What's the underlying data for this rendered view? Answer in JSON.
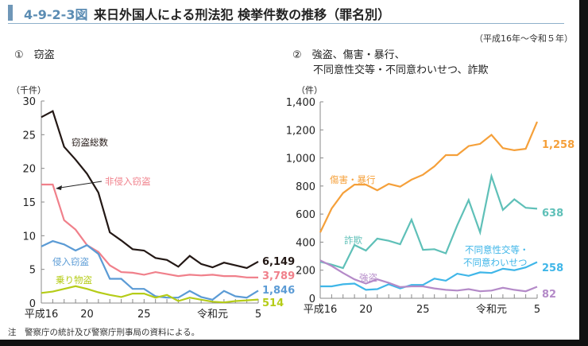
{
  "header": {
    "figure_id": "4-9-2-3図",
    "title": "来日外国人による刑法犯 検挙件数の推移（罪名別）",
    "period": "（平成16年～令和５年）"
  },
  "note": "注　警察庁の統計及び警察庁刑事局の資料による。",
  "chart_data": [
    {
      "type": "line",
      "title": "①　窃盗",
      "ylabel": "（千件）",
      "xlabel": "",
      "ylim": [
        0,
        30
      ],
      "yticks": [
        "0",
        "5",
        "10",
        "15",
        "20",
        "25",
        "30"
      ],
      "x": [
        16,
        17,
        18,
        19,
        20,
        21,
        22,
        23,
        24,
        25,
        26,
        27,
        28,
        29,
        30,
        31,
        2,
        3,
        4,
        5
      ],
      "xtick_labels": [
        "平成16",
        "20",
        "25",
        "令和元",
        "5"
      ],
      "series": [
        {
          "name": "窃盗総数",
          "color": "#231815",
          "values": [
            27.6,
            28.5,
            23.2,
            21.3,
            19.2,
            16.4,
            10.5,
            9.3,
            8.0,
            7.8,
            6.7,
            6.4,
            5.4,
            7.0,
            5.8,
            5.3,
            6.0,
            5.6,
            5.2,
            6.149
          ],
          "end_label": "6,149"
        },
        {
          "name": "非侵入窃盗",
          "color": "#f0808b",
          "values": [
            17.6,
            17.6,
            12.3,
            10.9,
            8.6,
            7.6,
            5.6,
            4.6,
            4.5,
            4.2,
            4.6,
            4.3,
            4.0,
            4.2,
            4.1,
            4.2,
            4.0,
            4.0,
            3.8,
            3.789
          ],
          "end_label": "3,789"
        },
        {
          "name": "侵入窃盗",
          "color": "#5b9bd5",
          "values": [
            8.4,
            9.2,
            8.7,
            7.8,
            8.6,
            7.3,
            3.6,
            3.6,
            2.1,
            2.1,
            1.0,
            0.8,
            0.8,
            1.8,
            0.9,
            0.5,
            1.8,
            1.0,
            0.8,
            1.846
          ],
          "end_label": "1,846"
        },
        {
          "name": "乗り物盗",
          "color": "#b5cc18",
          "values": [
            1.5,
            1.7,
            2.1,
            2.5,
            2.1,
            1.6,
            1.2,
            0.9,
            1.4,
            1.4,
            0.8,
            1.2,
            0.3,
            0.8,
            0.5,
            0.2,
            0.1,
            0.3,
            0.4,
            0.514
          ],
          "end_label": "514"
        }
      ],
      "annotations": [
        "窃盗総数",
        "非侵入窃盗",
        "侵入窃盗",
        "乗り物盗"
      ]
    },
    {
      "type": "line",
      "title": "②　強盗、傷害・暴行、\n不同意性交等・不同意わいせつ、詐欺",
      "title_lines": [
        "②　強盗、傷害・暴行、",
        "不同意性交等・不同意わいせつ、詐欺"
      ],
      "ylabel": "（件）",
      "xlabel": "",
      "ylim": [
        0,
        1400
      ],
      "yticks": [
        "0",
        "200",
        "400",
        "600",
        "800",
        "1,000",
        "1,200",
        "1,400"
      ],
      "x": [
        16,
        17,
        18,
        19,
        20,
        21,
        22,
        23,
        24,
        25,
        26,
        27,
        28,
        29,
        30,
        31,
        2,
        3,
        4,
        5
      ],
      "xtick_labels": [
        "平成16",
        "20",
        "25",
        "令和元",
        "5"
      ],
      "series": [
        {
          "name": "傷害・暴行",
          "color": "#f5a03a",
          "values": [
            470,
            640,
            750,
            810,
            810,
            770,
            815,
            795,
            845,
            880,
            940,
            1020,
            1020,
            1085,
            1100,
            1165,
            1070,
            1055,
            1065,
            1258
          ],
          "end_label": "1,258"
        },
        {
          "name": "詐欺",
          "color": "#5fc0b8",
          "values": [
            260,
            240,
            215,
            380,
            340,
            425,
            410,
            385,
            560,
            345,
            350,
            320,
            520,
            700,
            470,
            870,
            630,
            705,
            645,
            638
          ],
          "end_label": "638"
        },
        {
          "name": "不同意性交等・不同意わいせつ",
          "color": "#3fb6e8",
          "values": [
            85,
            85,
            100,
            105,
            60,
            65,
            100,
            70,
            95,
            95,
            140,
            125,
            175,
            160,
            185,
            180,
            210,
            200,
            220,
            258
          ],
          "end_label": "258"
        },
        {
          "name": "強盗",
          "color": "#b48ac8",
          "values": [
            270,
            230,
            180,
            135,
            105,
            135,
            110,
            80,
            85,
            85,
            70,
            60,
            55,
            65,
            50,
            55,
            75,
            60,
            50,
            82
          ],
          "end_label": "82"
        }
      ],
      "annotations": [
        "傷害・暴行",
        "詐欺",
        "強盗",
        "不同意性交等・",
        "不同意わいせつ"
      ]
    }
  ]
}
